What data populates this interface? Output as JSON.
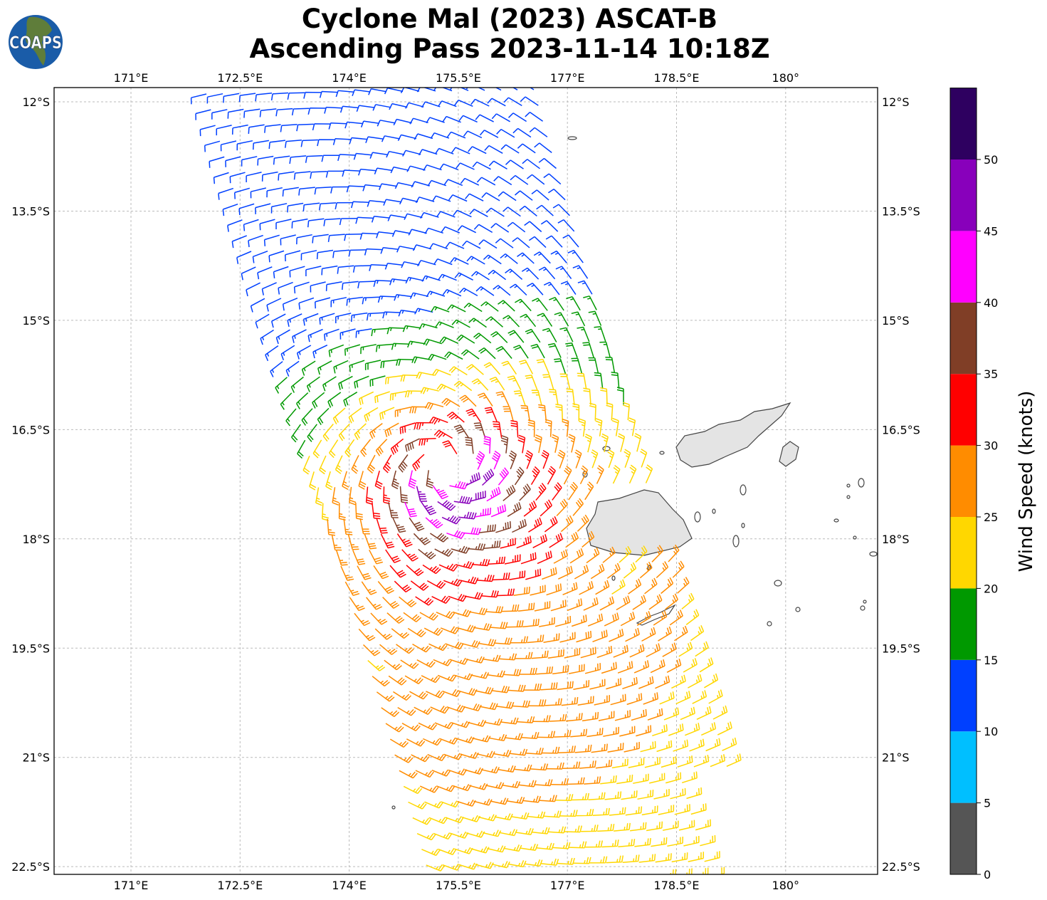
{
  "title": {
    "line1": "Cyclone Mal (2023) ASCAT-B",
    "line2": "Ascending Pass 2023-11-14 10:18Z"
  },
  "logo": {
    "text": "COAPS"
  },
  "map": {
    "lon_range": [
      170.3,
      181.6
    ],
    "lat_range": [
      -22.6,
      -11.8
    ],
    "lon_ticks": [
      {
        "v": 171,
        "label": "171°E"
      },
      {
        "v": 172.5,
        "label": "172.5°E"
      },
      {
        "v": 174,
        "label": "174°E"
      },
      {
        "v": 175.5,
        "label": "175.5°E"
      },
      {
        "v": 177,
        "label": "177°E"
      },
      {
        "v": 178.5,
        "label": "178.5°E"
      },
      {
        "v": 180,
        "label": "180°"
      }
    ],
    "lat_ticks": [
      {
        "v": -12,
        "label": "12°S"
      },
      {
        "v": -13.5,
        "label": "13.5°S"
      },
      {
        "v": -15,
        "label": "15°S"
      },
      {
        "v": -16.5,
        "label": "16.5°S"
      },
      {
        "v": -18,
        "label": "18°S"
      },
      {
        "v": -19.5,
        "label": "19.5°S"
      },
      {
        "v": -21,
        "label": "21°S"
      },
      {
        "v": -22.5,
        "label": "22.5°S"
      }
    ]
  },
  "colorbar": {
    "label": "Wind Speed (knots)",
    "ticks": [
      "0",
      "5",
      "10",
      "15",
      "20",
      "25",
      "30",
      "35",
      "40",
      "45",
      "50"
    ],
    "bins": [
      {
        "min": 0,
        "max": 5,
        "color": "#555555"
      },
      {
        "min": 5,
        "max": 10,
        "color": "#00bfff"
      },
      {
        "min": 10,
        "max": 15,
        "color": "#0040ff"
      },
      {
        "min": 15,
        "max": 20,
        "color": "#009900"
      },
      {
        "min": 20,
        "max": 25,
        "color": "#ffd700"
      },
      {
        "min": 25,
        "max": 30,
        "color": "#ff8c00"
      },
      {
        "min": 30,
        "max": 35,
        "color": "#ff0000"
      },
      {
        "min": 35,
        "max": 40,
        "color": "#803e26"
      },
      {
        "min": 40,
        "max": 45,
        "color": "#ff00ff"
      },
      {
        "min": 45,
        "max": 50,
        "color": "#8800bb"
      },
      {
        "min": 50,
        "max": 55,
        "color": "#2e0060"
      }
    ]
  }
}
